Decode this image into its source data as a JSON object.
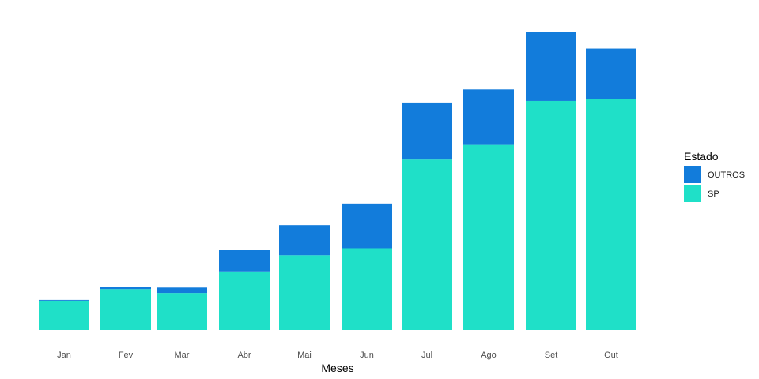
{
  "chart_data": {
    "type": "bar",
    "stacked": true,
    "categories": [
      "Jan",
      "Fev",
      "Mar",
      "Abr",
      "Mai",
      "Jun",
      "Jul",
      "Ago",
      "Set",
      "Out"
    ],
    "series": [
      {
        "name": "SP",
        "color": "#1FE0C8",
        "values": [
          38,
          53,
          48,
          76,
          97,
          106,
          221,
          240,
          297,
          299
        ]
      },
      {
        "name": "OUTROS",
        "color": "#127CDB",
        "values": [
          1,
          3,
          7,
          28,
          39,
          58,
          74,
          72,
          90,
          66
        ]
      }
    ],
    "xlabel": "Meses",
    "ylabel": "",
    "ylim": [
      0,
      400
    ],
    "grid": false,
    "legend": {
      "title": "Estado",
      "position": "right",
      "order": [
        "OUTROS",
        "SP"
      ]
    }
  }
}
